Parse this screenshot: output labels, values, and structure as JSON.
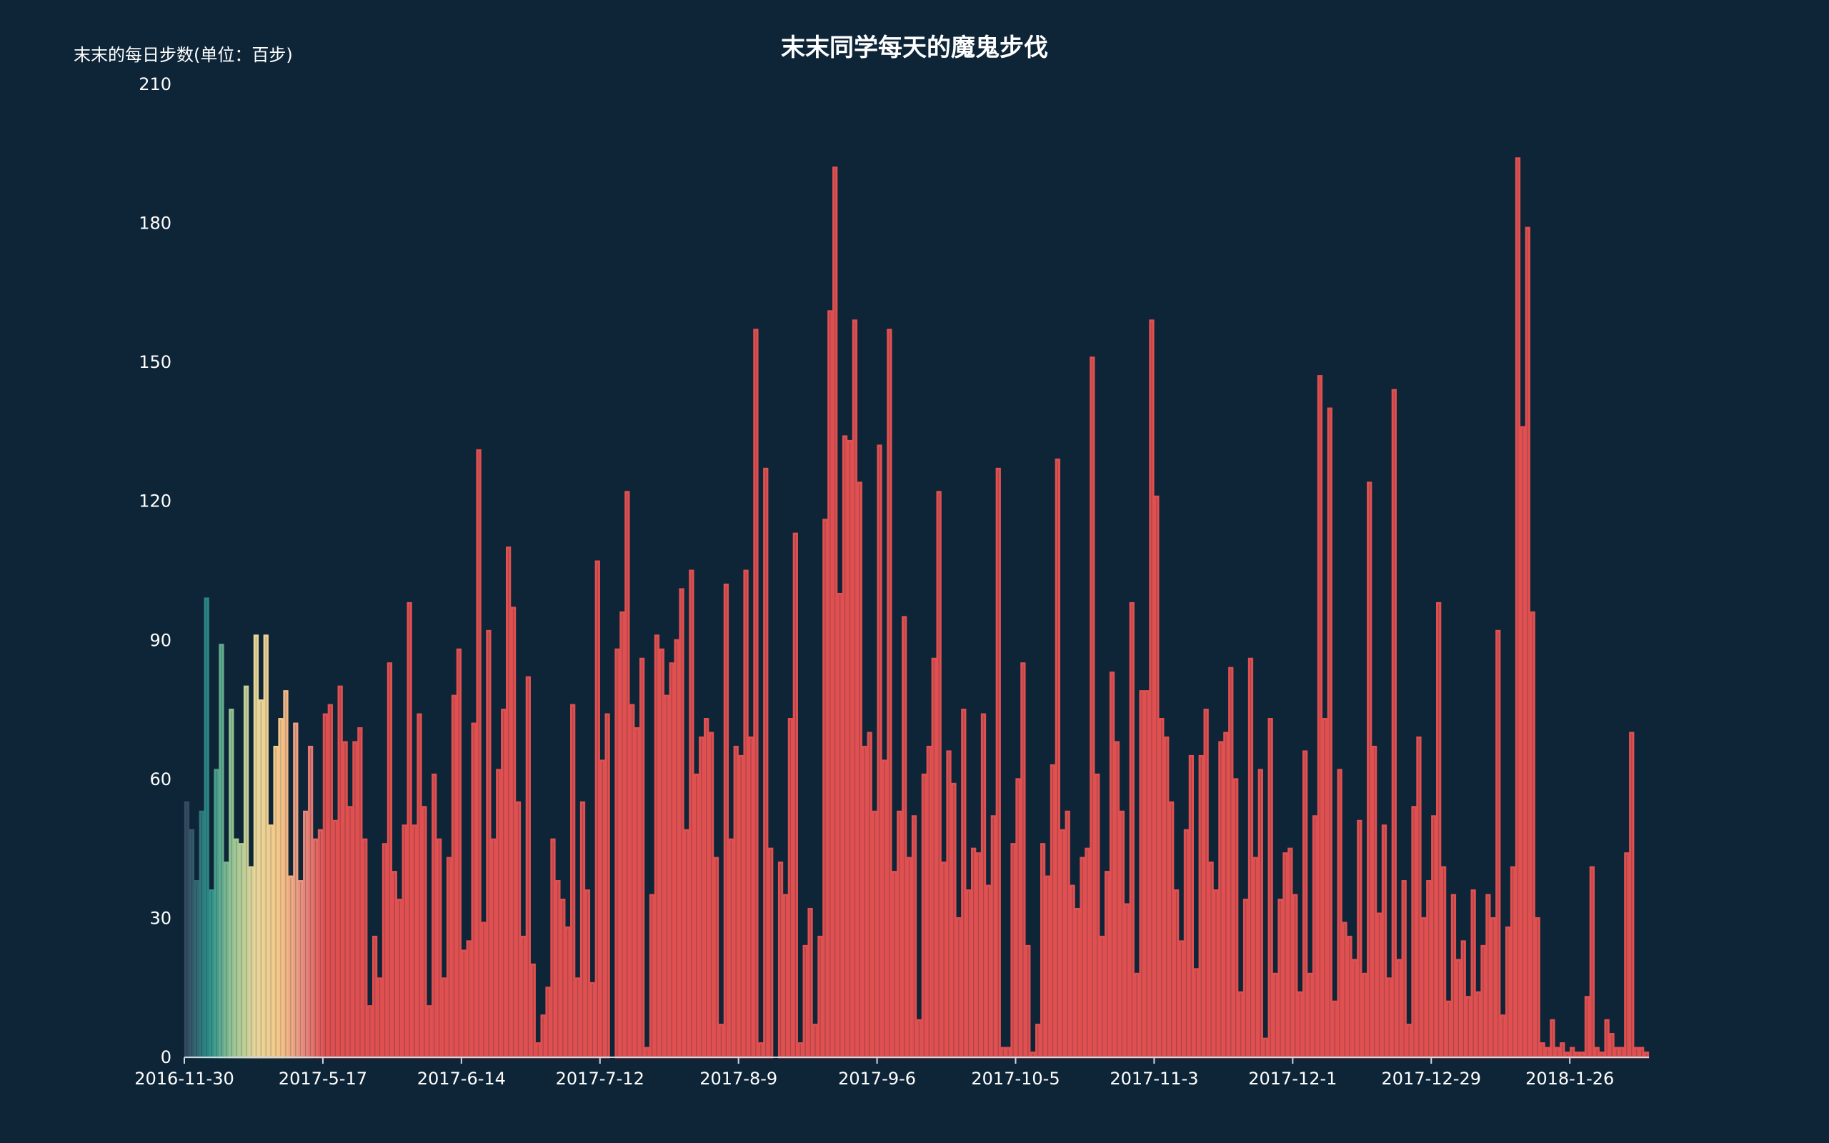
{
  "chart_data": {
    "type": "bar",
    "title": "末末同学每天的魔鬼步伐",
    "ylabel": "末末的每日步数(单位：百步)",
    "xlabel": "",
    "ylim": [
      0,
      210
    ],
    "y_ticks": [
      0,
      30,
      60,
      90,
      120,
      150,
      180,
      210
    ],
    "x_tick_labels": [
      "2016-11-30",
      "2017-5-17",
      "2017-6-14",
      "2017-7-12",
      "2017-8-9",
      "2017-9-6",
      "2017-10-5",
      "2017-11-3",
      "2017-12-1",
      "2017-12-29",
      "2018-1-26"
    ],
    "x_tick_indices": [
      0,
      28,
      56,
      84,
      112,
      140,
      168,
      196,
      224,
      252,
      280
    ],
    "grid": false,
    "legend": "none",
    "visual_map": {
      "min": 0,
      "max": 28,
      "colors": [
        "#364b5f",
        "#2a8f89",
        "#99c593",
        "#e8d699",
        "#f5c889",
        "#e89080",
        "#e05050"
      ]
    },
    "values": [
      55,
      49,
      38,
      53,
      99,
      36,
      62,
      89,
      42,
      75,
      47,
      46,
      80,
      41,
      91,
      77,
      91,
      50,
      67,
      73,
      79,
      39,
      72,
      38,
      53,
      67,
      47,
      49,
      74,
      76,
      51,
      80,
      68,
      54,
      68,
      71,
      47,
      11,
      26,
      17,
      46,
      85,
      40,
      34,
      50,
      98,
      50,
      74,
      54,
      11,
      61,
      47,
      17,
      43,
      78,
      88,
      23,
      25,
      72,
      131,
      29,
      92,
      47,
      62,
      75,
      110,
      97,
      55,
      26,
      82,
      20,
      3,
      9,
      15,
      47,
      38,
      34,
      28,
      76,
      17,
      55,
      36,
      16,
      107,
      64,
      74,
      0,
      88,
      96,
      122,
      76,
      71,
      86,
      2,
      35,
      91,
      88,
      78,
      85,
      90,
      101,
      49,
      105,
      61,
      69,
      73,
      70,
      43,
      7,
      102,
      47,
      67,
      65,
      105,
      69,
      157,
      3,
      127,
      45,
      0,
      42,
      35,
      73,
      113,
      3,
      24,
      32,
      7,
      26,
      116,
      161,
      192,
      100,
      134,
      133,
      159,
      124,
      67,
      70,
      53,
      132,
      64,
      157,
      40,
      53,
      95,
      43,
      52,
      8,
      61,
      67,
      86,
      122,
      42,
      66,
      59,
      30,
      75,
      36,
      45,
      44,
      74,
      37,
      52,
      127,
      2,
      2,
      46,
      60,
      85,
      24,
      1,
      7,
      46,
      39,
      63,
      129,
      49,
      53,
      37,
      32,
      43,
      45,
      151,
      61,
      26,
      40,
      83,
      68,
      53,
      33,
      98,
      18,
      79,
      79,
      159,
      121,
      73,
      69,
      55,
      36,
      25,
      49,
      65,
      19,
      65,
      75,
      42,
      36,
      68,
      70,
      84,
      60,
      14,
      34,
      86,
      43,
      62,
      4,
      73,
      18,
      34,
      44,
      45,
      35,
      14,
      66,
      18,
      52,
      147,
      73,
      140,
      12,
      62,
      29,
      26,
      21,
      51,
      18,
      124,
      67,
      31,
      50,
      17,
      144,
      21,
      38,
      7,
      54,
      69,
      30,
      38,
      52,
      98,
      41,
      12,
      35,
      21,
      25,
      13,
      36,
      14,
      24,
      35,
      30,
      92,
      9,
      28,
      41,
      194,
      136,
      179,
      96,
      30,
      3,
      2,
      8,
      2,
      3,
      1,
      2,
      1,
      1,
      13,
      41,
      2,
      1,
      8,
      5,
      2,
      2,
      44,
      70,
      2,
      2,
      1
    ]
  }
}
